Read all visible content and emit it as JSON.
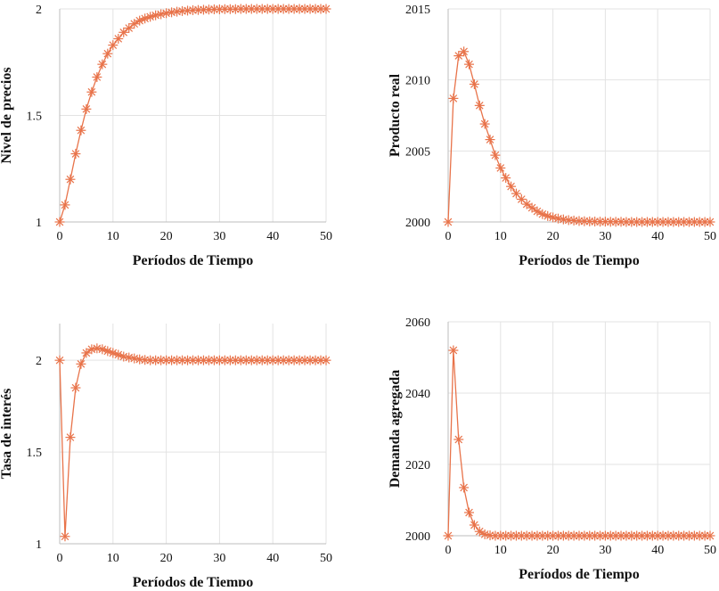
{
  "series_color": "#e8734a",
  "grid_color": "#e3e3e3",
  "axis_color": "#bdbdbd",
  "chart_data": [
    {
      "type": "line",
      "marker": "asterisk",
      "xlabel": "Períodos de Tiempo",
      "ylabel": "Nivel de precios",
      "xlim": [
        0,
        50
      ],
      "ylim": [
        1,
        2
      ],
      "xticks": [
        0,
        10,
        20,
        30,
        40,
        50
      ],
      "yticks": [
        1,
        1.5,
        2
      ],
      "ytick_labels": [
        "1",
        "1.5",
        "2"
      ],
      "x": [
        0,
        1,
        2,
        3,
        4,
        5,
        6,
        7,
        8,
        9,
        10,
        11,
        12,
        13,
        14,
        15,
        16,
        17,
        18,
        19,
        20,
        21,
        22,
        23,
        24,
        25,
        26,
        27,
        28,
        29,
        30,
        31,
        32,
        33,
        34,
        35,
        36,
        37,
        38,
        39,
        40,
        41,
        42,
        43,
        44,
        45,
        46,
        47,
        48,
        49,
        50
      ],
      "values": [
        1.0,
        1.08,
        1.2,
        1.32,
        1.43,
        1.53,
        1.61,
        1.68,
        1.74,
        1.79,
        1.83,
        1.86,
        1.89,
        1.91,
        1.93,
        1.945,
        1.955,
        1.963,
        1.97,
        1.975,
        1.98,
        1.984,
        1.987,
        1.99,
        1.992,
        1.994,
        1.995,
        1.996,
        1.997,
        1.998,
        1.998,
        1.999,
        1.999,
        1.999,
        2.0,
        2.0,
        2.0,
        2.0,
        2.0,
        2.0,
        2.0,
        2.0,
        2.0,
        2.0,
        2.0,
        2.0,
        2.0,
        2.0,
        2.0,
        2.0,
        2.0
      ]
    },
    {
      "type": "line",
      "marker": "asterisk",
      "xlabel": "Períodos de Tiempo",
      "ylabel": "Producto real",
      "xlim": [
        0,
        50
      ],
      "ylim": [
        2000,
        2015
      ],
      "xticks": [
        0,
        10,
        20,
        30,
        40,
        50
      ],
      "yticks": [
        2000,
        2005,
        2010,
        2015
      ],
      "ytick_labels": [
        "2000",
        "2005",
        "2010",
        "2015"
      ],
      "x": [
        0,
        1,
        2,
        3,
        4,
        5,
        6,
        7,
        8,
        9,
        10,
        11,
        12,
        13,
        14,
        15,
        16,
        17,
        18,
        19,
        20,
        21,
        22,
        23,
        24,
        25,
        26,
        27,
        28,
        29,
        30,
        31,
        32,
        33,
        34,
        35,
        36,
        37,
        38,
        39,
        40,
        41,
        42,
        43,
        44,
        45,
        46,
        47,
        48,
        49,
        50
      ],
      "values": [
        2000.0,
        2008.7,
        2011.7,
        2012.0,
        2011.1,
        2009.7,
        2008.2,
        2006.9,
        2005.8,
        2004.7,
        2003.8,
        2003.1,
        2002.5,
        2002.0,
        2001.6,
        2001.25,
        2001.0,
        2000.75,
        2000.55,
        2000.42,
        2000.32,
        2000.24,
        2000.18,
        2000.13,
        2000.1,
        2000.07,
        2000.05,
        2000.04,
        2000.03,
        2000.02,
        2000.02,
        2000.01,
        2000.01,
        2000.01,
        2000.0,
        2000.0,
        2000.0,
        2000.0,
        2000.0,
        2000.0,
        2000.0,
        2000.0,
        2000.0,
        2000.0,
        2000.0,
        2000.0,
        2000.0,
        2000.0,
        2000.0,
        2000.0,
        2000.0
      ]
    },
    {
      "type": "line",
      "marker": "asterisk",
      "xlabel": "Períodos de Tiempo",
      "ylabel": "Tasa de interés",
      "xlim": [
        0,
        50
      ],
      "ylim": [
        1,
        2.2
      ],
      "xticks": [
        0,
        10,
        20,
        30,
        40,
        50
      ],
      "yticks": [
        1,
        1.5,
        2
      ],
      "ytick_labels": [
        "1",
        "1.5",
        "2"
      ],
      "x": [
        0,
        1,
        2,
        3,
        4,
        5,
        6,
        7,
        8,
        9,
        10,
        11,
        12,
        13,
        14,
        15,
        16,
        17,
        18,
        19,
        20,
        21,
        22,
        23,
        24,
        25,
        26,
        27,
        28,
        29,
        30,
        31,
        32,
        33,
        34,
        35,
        36,
        37,
        38,
        39,
        40,
        41,
        42,
        43,
        44,
        45,
        46,
        47,
        48,
        49,
        50
      ],
      "values": [
        2.0,
        1.04,
        1.58,
        1.85,
        1.98,
        2.04,
        2.06,
        2.065,
        2.06,
        2.05,
        2.04,
        2.03,
        2.02,
        2.015,
        2.01,
        2.005,
        2.002,
        2.0,
        2.0,
        2.0,
        2.0,
        2.0,
        2.0,
        2.0,
        2.0,
        2.0,
        2.0,
        2.0,
        2.0,
        2.0,
        2.0,
        2.0,
        2.0,
        2.0,
        2.0,
        2.0,
        2.0,
        2.0,
        2.0,
        2.0,
        2.0,
        2.0,
        2.0,
        2.0,
        2.0,
        2.0,
        2.0,
        2.0,
        2.0,
        2.0,
        2.0
      ]
    },
    {
      "type": "line",
      "marker": "asterisk",
      "xlabel": "Períodos de Tiempo",
      "ylabel": "Demanda agregada",
      "xlim": [
        0,
        50
      ],
      "ylim": [
        2000,
        2060
      ],
      "xticks": [
        0,
        10,
        20,
        30,
        40,
        50
      ],
      "yticks": [
        2000,
        2020,
        2040,
        2060
      ],
      "ytick_labels": [
        "2000",
        "2020",
        "2040",
        "2060"
      ],
      "x": [
        0,
        1,
        2,
        3,
        4,
        5,
        6,
        7,
        8,
        9,
        10,
        11,
        12,
        13,
        14,
        15,
        16,
        17,
        18,
        19,
        20,
        21,
        22,
        23,
        24,
        25,
        26,
        27,
        28,
        29,
        30,
        31,
        32,
        33,
        34,
        35,
        36,
        37,
        38,
        39,
        40,
        41,
        42,
        43,
        44,
        45,
        46,
        47,
        48,
        49,
        50
      ],
      "values": [
        2000.0,
        2052.0,
        2027.0,
        2013.5,
        2006.5,
        2003.0,
        2001.2,
        2000.4,
        2000.1,
        2000.0,
        2000.0,
        2000.0,
        2000.0,
        2000.0,
        2000.0,
        2000.0,
        2000.0,
        2000.0,
        2000.0,
        2000.0,
        2000.0,
        2000.0,
        2000.0,
        2000.0,
        2000.0,
        2000.0,
        2000.0,
        2000.0,
        2000.0,
        2000.0,
        2000.0,
        2000.0,
        2000.0,
        2000.0,
        2000.0,
        2000.0,
        2000.0,
        2000.0,
        2000.0,
        2000.0,
        2000.0,
        2000.0,
        2000.0,
        2000.0,
        2000.0,
        2000.0,
        2000.0,
        2000.0,
        2000.0,
        2000.0,
        2000.0
      ]
    }
  ]
}
